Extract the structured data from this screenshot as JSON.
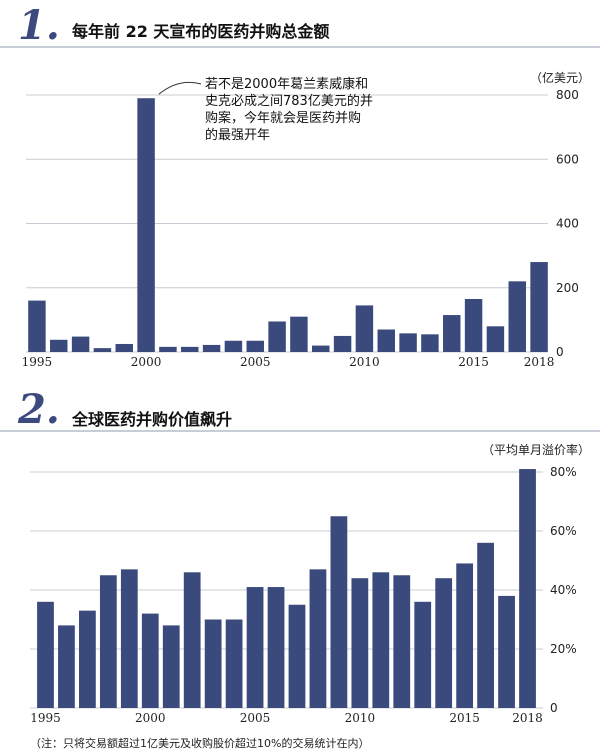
{
  "colors": {
    "bar": "#3b4a7c",
    "grid": "#c9ccd4",
    "accent": "#3c4a7d"
  },
  "section1": {
    "number": "1.",
    "title": "每年前 22 天宣布的医药并购总金额"
  },
  "section2": {
    "number": "2.",
    "title": "全球医药并购价值飙升"
  },
  "footnote": "（注：只将交易额超过1亿美元及收购股价超过10%的交易统计在内）",
  "chart_data": [
    {
      "type": "bar",
      "title": "每年前 22 天宣布的医药并购总金额",
      "ylabel": "（亿美元）",
      "x": [
        1995,
        1996,
        1997,
        1998,
        1999,
        2000,
        2001,
        2002,
        2003,
        2004,
        2005,
        2006,
        2007,
        2008,
        2009,
        2010,
        2011,
        2012,
        2013,
        2014,
        2015,
        2016,
        2017,
        2018
      ],
      "x_tick_labels": [
        "1995",
        "2000",
        "2005",
        "2010",
        "2015",
        "2018"
      ],
      "values": [
        160,
        38,
        48,
        12,
        25,
        790,
        16,
        16,
        22,
        35,
        35,
        95,
        110,
        20,
        50,
        145,
        70,
        58,
        55,
        115,
        165,
        80,
        220,
        280
      ],
      "ylim": [
        0,
        800
      ],
      "y_ticks": [
        0,
        200,
        400,
        600,
        800
      ],
      "y_tick_labels": [
        "0",
        "200",
        "400",
        "600",
        "800"
      ],
      "grid": true,
      "annotation": {
        "target_year": 2000,
        "lines": [
          "若不是2000年葛兰素威康和",
          "史克必成之间783亿美元的并",
          "购案，今年就会是医药并购",
          "的最强开年"
        ]
      }
    },
    {
      "type": "bar",
      "title": "全球医药并购价值飙升",
      "ylabel": "（平均单月溢价率）",
      "x": [
        1995,
        1996,
        1997,
        1998,
        1999,
        2000,
        2001,
        2002,
        2003,
        2004,
        2005,
        2006,
        2007,
        2008,
        2009,
        2010,
        2011,
        2012,
        2013,
        2014,
        2015,
        2016,
        2017,
        2018
      ],
      "x_tick_labels": [
        "1995",
        "2000",
        "2005",
        "2010",
        "2015",
        "2018"
      ],
      "values": [
        36,
        28,
        33,
        45,
        47,
        32,
        28,
        46,
        30,
        30,
        41,
        41,
        35,
        47,
        65,
        44,
        46,
        45,
        36,
        44,
        49,
        56,
        38,
        81
      ],
      "ylim": [
        0,
        80
      ],
      "y_ticks": [
        0,
        20,
        40,
        60,
        80
      ],
      "y_tick_labels": [
        "0",
        "20%",
        "40%",
        "60%",
        "80%"
      ],
      "grid": true
    }
  ]
}
